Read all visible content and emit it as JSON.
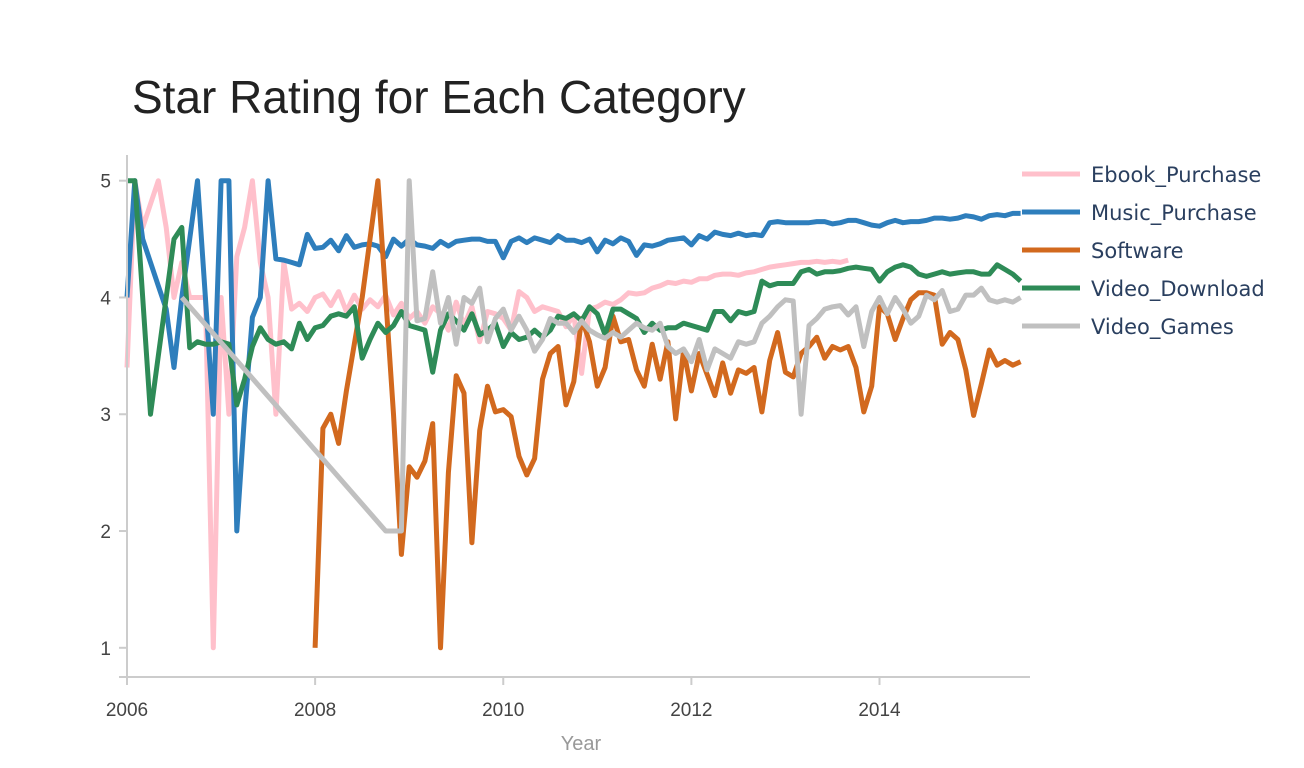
{
  "chart_data": {
    "type": "line",
    "title": "Star Rating for Each Category",
    "xlabel": "Year",
    "ylabel": "",
    "x_unit": "year",
    "xlim": [
      2006.0,
      2015.6
    ],
    "ylim": [
      0.75,
      5.22
    ],
    "xticks": [
      2006,
      2008,
      2010,
      2012,
      2014
    ],
    "yticks": [
      1,
      2,
      3,
      4,
      5
    ],
    "grid": false,
    "legend_position": "top-right",
    "series": [
      {
        "name": "Ebook_Purchase",
        "color": "#ffc0cb",
        "x": [
          2006.0,
          2006.083,
          2006.167,
          2006.25,
          2006.333,
          2006.417,
          2006.5,
          2006.583,
          2006.667,
          2006.75,
          2006.833,
          2006.917,
          2007.0,
          2007.083,
          2007.167,
          2007.25,
          2007.333,
          2007.417,
          2007.5,
          2007.583,
          2007.667,
          2007.75,
          2007.833,
          2007.917,
          2008.0,
          2008.083,
          2008.167,
          2008.25,
          2008.333,
          2008.417,
          2008.5,
          2008.583,
          2008.667,
          2008.75,
          2008.833,
          2008.917,
          2009.0,
          2009.083,
          2009.167,
          2009.25,
          2009.333,
          2009.417,
          2009.5,
          2009.583,
          2009.667,
          2009.75,
          2009.833,
          2009.917,
          2010.0,
          2010.083,
          2010.167,
          2010.25,
          2010.333,
          2010.417,
          2010.5,
          2010.583,
          2010.667,
          2010.75,
          2010.833,
          2010.917,
          2011.0,
          2011.083,
          2011.167,
          2011.25,
          2011.333,
          2011.417,
          2011.5,
          2011.583,
          2011.667,
          2011.75,
          2011.833,
          2011.917,
          2012.0,
          2012.083,
          2012.167,
          2012.25,
          2012.333,
          2012.417,
          2012.5,
          2012.583,
          2012.667,
          2012.75,
          2012.833,
          2012.917,
          2013.0,
          2013.083,
          2013.167,
          2013.25,
          2013.333,
          2013.417,
          2013.5,
          2013.583,
          2013.667
        ],
        "y": [
          3.4,
          5.0,
          4.6,
          4.8,
          5.0,
          4.6,
          4.0,
          4.3,
          4.0,
          4.0,
          4.0,
          1.0,
          4.0,
          3.0,
          4.35,
          4.6,
          5.0,
          4.3,
          4.0,
          3.0,
          4.3,
          3.9,
          3.95,
          3.88,
          4.0,
          4.03,
          3.93,
          4.05,
          3.88,
          4.02,
          3.9,
          3.98,
          3.92,
          4.02,
          3.85,
          3.95,
          3.82,
          3.88,
          3.78,
          3.92,
          3.86,
          3.72,
          3.96,
          3.76,
          3.92,
          3.62,
          3.88,
          3.86,
          3.82,
          3.72,
          4.05,
          4.0,
          3.88,
          3.92,
          3.9,
          3.88,
          3.75,
          3.85,
          3.35,
          3.9,
          3.92,
          3.96,
          3.94,
          3.98,
          4.04,
          4.03,
          4.04,
          4.08,
          4.1,
          4.13,
          4.12,
          4.14,
          4.13,
          4.16,
          4.16,
          4.19,
          4.2,
          4.2,
          4.19,
          4.21,
          4.22,
          4.24,
          4.26,
          4.27,
          4.28,
          4.29,
          4.3,
          4.3,
          4.31,
          4.3,
          4.31,
          4.3,
          4.32
        ]
      },
      {
        "name": "Music_Purchase",
        "color": "#2e7ebc",
        "x": [
          2006.0,
          2006.083,
          2006.167,
          2006.25,
          2006.333,
          2006.417,
          2006.5,
          2006.583,
          2006.667,
          2006.75,
          2006.833,
          2006.917,
          2007.0,
          2007.083,
          2007.167,
          2007.25,
          2007.333,
          2007.417,
          2007.5,
          2007.583,
          2007.667,
          2007.75,
          2007.833,
          2007.917,
          2008.0,
          2008.083,
          2008.167,
          2008.25,
          2008.333,
          2008.417,
          2008.5,
          2008.583,
          2008.667,
          2008.75,
          2008.833,
          2008.917,
          2009.0,
          2009.083,
          2009.167,
          2009.25,
          2009.333,
          2009.417,
          2009.5,
          2009.583,
          2009.667,
          2009.75,
          2009.833,
          2009.917,
          2010.0,
          2010.083,
          2010.167,
          2010.25,
          2010.333,
          2010.417,
          2010.5,
          2010.583,
          2010.667,
          2010.75,
          2010.833,
          2010.917,
          2011.0,
          2011.083,
          2011.167,
          2011.25,
          2011.333,
          2011.417,
          2011.5,
          2011.583,
          2011.667,
          2011.75,
          2011.833,
          2011.917,
          2012.0,
          2012.083,
          2012.167,
          2012.25,
          2012.333,
          2012.417,
          2012.5,
          2012.583,
          2012.667,
          2012.75,
          2012.833,
          2012.917,
          2013.0,
          2013.083,
          2013.167,
          2013.25,
          2013.333,
          2013.417,
          2013.5,
          2013.583,
          2013.667,
          2013.75,
          2013.833,
          2013.917,
          2014.0,
          2014.083,
          2014.167,
          2014.25,
          2014.333,
          2014.417,
          2014.5,
          2014.583,
          2014.667,
          2014.75,
          2014.833,
          2014.917,
          2015.0,
          2015.083,
          2015.167,
          2015.25,
          2015.333,
          2015.417,
          2015.5
        ],
        "y": [
          4.0,
          5.0,
          4.5,
          4.3,
          4.1,
          3.9,
          3.4,
          4.0,
          4.5,
          5.0,
          4.0,
          3.0,
          5.0,
          5.0,
          2.0,
          3.0,
          3.83,
          4.0,
          5.0,
          4.33,
          4.32,
          4.3,
          4.28,
          4.54,
          4.42,
          4.43,
          4.49,
          4.4,
          4.53,
          4.43,
          4.45,
          4.46,
          4.44,
          4.35,
          4.5,
          4.44,
          4.5,
          4.45,
          4.44,
          4.42,
          4.48,
          4.44,
          4.48,
          4.49,
          4.5,
          4.5,
          4.48,
          4.48,
          4.34,
          4.48,
          4.51,
          4.47,
          4.51,
          4.49,
          4.47,
          4.53,
          4.49,
          4.49,
          4.47,
          4.5,
          4.39,
          4.49,
          4.46,
          4.51,
          4.48,
          4.36,
          4.45,
          4.44,
          4.46,
          4.49,
          4.5,
          4.51,
          4.45,
          4.53,
          4.5,
          4.56,
          4.54,
          4.53,
          4.55,
          4.53,
          4.54,
          4.53,
          4.64,
          4.65,
          4.64,
          4.64,
          4.64,
          4.64,
          4.65,
          4.65,
          4.63,
          4.64,
          4.66,
          4.66,
          4.64,
          4.62,
          4.61,
          4.64,
          4.66,
          4.64,
          4.65,
          4.65,
          4.66,
          4.68,
          4.68,
          4.67,
          4.68,
          4.7,
          4.69,
          4.67,
          4.7,
          4.71,
          4.7,
          4.72,
          4.72
        ]
      },
      {
        "name": "Software",
        "color": "#d2691e",
        "x": [
          2008.0,
          2008.083,
          2008.167,
          2008.25,
          2008.333,
          2008.417,
          2008.5,
          2008.583,
          2008.667,
          2008.75,
          2008.833,
          2008.917,
          2009.0,
          2009.083,
          2009.167,
          2009.25,
          2009.333,
          2009.417,
          2009.5,
          2009.583,
          2009.667,
          2009.75,
          2009.833,
          2009.917,
          2010.0,
          2010.083,
          2010.167,
          2010.25,
          2010.333,
          2010.417,
          2010.5,
          2010.583,
          2010.667,
          2010.75,
          2010.833,
          2010.917,
          2011.0,
          2011.083,
          2011.167,
          2011.25,
          2011.333,
          2011.417,
          2011.5,
          2011.583,
          2011.667,
          2011.75,
          2011.833,
          2011.917,
          2012.0,
          2012.083,
          2012.167,
          2012.25,
          2012.333,
          2012.417,
          2012.5,
          2012.583,
          2012.667,
          2012.75,
          2012.833,
          2012.917,
          2013.0,
          2013.083,
          2013.167,
          2013.25,
          2013.333,
          2013.417,
          2013.5,
          2013.583,
          2013.667,
          2013.75,
          2013.833,
          2013.917,
          2014.0,
          2014.083,
          2014.167,
          2014.25,
          2014.333,
          2014.417,
          2014.5,
          2014.583,
          2014.667,
          2014.75,
          2014.833,
          2014.917,
          2015.0,
          2015.083,
          2015.167,
          2015.25,
          2015.333,
          2015.417,
          2015.5
        ],
        "y": [
          1.0,
          2.88,
          3.0,
          2.75,
          3.2,
          3.6,
          4.0,
          4.5,
          5.0,
          4.0,
          3.0,
          1.8,
          2.55,
          2.46,
          2.6,
          2.92,
          1.0,
          2.5,
          3.33,
          3.18,
          1.9,
          2.86,
          3.24,
          3.02,
          3.04,
          2.98,
          2.64,
          2.48,
          2.62,
          3.3,
          3.52,
          3.58,
          3.08,
          3.28,
          3.82,
          3.62,
          3.24,
          3.4,
          3.84,
          3.62,
          3.64,
          3.38,
          3.24,
          3.6,
          3.3,
          3.62,
          2.96,
          3.55,
          3.2,
          3.52,
          3.34,
          3.16,
          3.44,
          3.18,
          3.38,
          3.35,
          3.4,
          3.02,
          3.46,
          3.7,
          3.36,
          3.32,
          3.52,
          3.58,
          3.66,
          3.48,
          3.58,
          3.55,
          3.58,
          3.4,
          3.02,
          3.24,
          3.92,
          3.86,
          3.64,
          3.82,
          3.98,
          4.04,
          4.04,
          4.02,
          3.6,
          3.7,
          3.64,
          3.38,
          2.99,
          3.26,
          3.55,
          3.42,
          3.46,
          3.42,
          3.45
        ]
      },
      {
        "name": "Video_Download",
        "color": "#2e8b57",
        "x": [
          2006.0,
          2006.083,
          2006.167,
          2006.25,
          2006.333,
          2006.417,
          2006.5,
          2006.583,
          2006.667,
          2006.75,
          2006.833,
          2006.917,
          2007.0,
          2007.083,
          2007.167,
          2007.25,
          2007.333,
          2007.417,
          2007.5,
          2007.583,
          2007.667,
          2007.75,
          2007.833,
          2007.917,
          2008.0,
          2008.083,
          2008.167,
          2008.25,
          2008.333,
          2008.417,
          2008.5,
          2008.583,
          2008.667,
          2008.75,
          2008.833,
          2008.917,
          2009.0,
          2009.083,
          2009.167,
          2009.25,
          2009.333,
          2009.417,
          2009.5,
          2009.583,
          2009.667,
          2009.75,
          2009.833,
          2009.917,
          2010.0,
          2010.083,
          2010.167,
          2010.25,
          2010.333,
          2010.417,
          2010.5,
          2010.583,
          2010.667,
          2010.75,
          2010.833,
          2010.917,
          2011.0,
          2011.083,
          2011.167,
          2011.25,
          2011.333,
          2011.417,
          2011.5,
          2011.583,
          2011.667,
          2011.75,
          2011.833,
          2011.917,
          2012.0,
          2012.083,
          2012.167,
          2012.25,
          2012.333,
          2012.417,
          2012.5,
          2012.583,
          2012.667,
          2012.75,
          2012.833,
          2012.917,
          2013.0,
          2013.083,
          2013.167,
          2013.25,
          2013.333,
          2013.417,
          2013.5,
          2013.583,
          2013.667,
          2013.75,
          2013.833,
          2013.917,
          2014.0,
          2014.083,
          2014.167,
          2014.25,
          2014.333,
          2014.417,
          2014.5,
          2014.583,
          2014.667,
          2014.75,
          2014.833,
          2014.917,
          2015.0,
          2015.083,
          2015.167,
          2015.25,
          2015.333,
          2015.417,
          2015.5
        ],
        "y": [
          5.0,
          5.0,
          4.0,
          3.0,
          3.5,
          4.0,
          4.5,
          4.6,
          3.57,
          3.62,
          3.6,
          3.6,
          3.62,
          3.6,
          3.08,
          3.3,
          3.58,
          3.74,
          3.64,
          3.6,
          3.62,
          3.56,
          3.78,
          3.64,
          3.74,
          3.76,
          3.84,
          3.86,
          3.84,
          3.92,
          3.48,
          3.64,
          3.78,
          3.7,
          3.76,
          3.88,
          3.76,
          3.74,
          3.72,
          3.36,
          3.72,
          3.86,
          3.8,
          3.72,
          3.86,
          3.68,
          3.72,
          3.78,
          3.58,
          3.7,
          3.64,
          3.66,
          3.72,
          3.66,
          3.72,
          3.84,
          3.82,
          3.86,
          3.8,
          3.92,
          3.86,
          3.68,
          3.9,
          3.9,
          3.86,
          3.82,
          3.7,
          3.78,
          3.72,
          3.74,
          3.74,
          3.78,
          3.76,
          3.74,
          3.72,
          3.88,
          3.88,
          3.8,
          3.88,
          3.86,
          3.88,
          4.14,
          4.1,
          4.12,
          4.12,
          4.12,
          4.22,
          4.24,
          4.2,
          4.22,
          4.22,
          4.23,
          4.25,
          4.26,
          4.25,
          4.24,
          4.14,
          4.22,
          4.26,
          4.28,
          4.26,
          4.2,
          4.18,
          4.2,
          4.22,
          4.2,
          4.21,
          4.22,
          4.22,
          4.2,
          4.2,
          4.28,
          4.24,
          4.2,
          4.14
        ]
      },
      {
        "name": "Video_Games",
        "color": "#c0c0c0",
        "x": [
          2006.583,
          2008.75,
          2008.833,
          2008.917,
          2009.0,
          2009.083,
          2009.167,
          2009.25,
          2009.333,
          2009.417,
          2009.5,
          2009.583,
          2009.667,
          2009.75,
          2009.833,
          2009.917,
          2010.0,
          2010.083,
          2010.167,
          2010.25,
          2010.333,
          2010.417,
          2010.5,
          2010.583,
          2010.667,
          2010.75,
          2010.833,
          2010.917,
          2011.0,
          2011.083,
          2011.167,
          2011.25,
          2011.333,
          2011.417,
          2011.5,
          2011.583,
          2011.667,
          2011.75,
          2011.833,
          2011.917,
          2012.0,
          2012.083,
          2012.167,
          2012.25,
          2012.333,
          2012.417,
          2012.5,
          2012.583,
          2012.667,
          2012.75,
          2012.833,
          2012.917,
          2013.0,
          2013.083,
          2013.167,
          2013.25,
          2013.333,
          2013.417,
          2013.5,
          2013.583,
          2013.667,
          2013.75,
          2013.833,
          2013.917,
          2014.0,
          2014.083,
          2014.167,
          2014.25,
          2014.333,
          2014.417,
          2014.5,
          2014.583,
          2014.667,
          2014.75,
          2014.833,
          2014.917,
          2015.0,
          2015.083,
          2015.167,
          2015.25,
          2015.333,
          2015.417,
          2015.5
        ],
        "y": [
          4.0,
          2.0,
          2.0,
          2.0,
          5.0,
          3.8,
          3.82,
          4.22,
          3.78,
          4.0,
          3.6,
          4.0,
          3.95,
          4.08,
          3.62,
          3.82,
          3.9,
          3.72,
          3.84,
          3.72,
          3.54,
          3.64,
          3.82,
          3.78,
          3.78,
          3.7,
          3.8,
          3.72,
          3.68,
          3.65,
          3.7,
          3.66,
          3.72,
          3.78,
          3.74,
          3.72,
          3.78,
          3.58,
          3.52,
          3.56,
          3.45,
          3.64,
          3.38,
          3.56,
          3.52,
          3.48,
          3.62,
          3.6,
          3.62,
          3.78,
          3.84,
          3.92,
          3.98,
          3.97,
          3.0,
          3.76,
          3.82,
          3.9,
          3.92,
          3.93,
          3.85,
          3.92,
          3.58,
          3.88,
          4.0,
          3.86,
          4.0,
          3.9,
          3.78,
          3.84,
          4.02,
          3.98,
          4.06,
          3.88,
          3.9,
          4.02,
          4.02,
          4.08,
          3.98,
          3.96,
          3.98,
          3.96,
          4.0
        ]
      }
    ]
  }
}
